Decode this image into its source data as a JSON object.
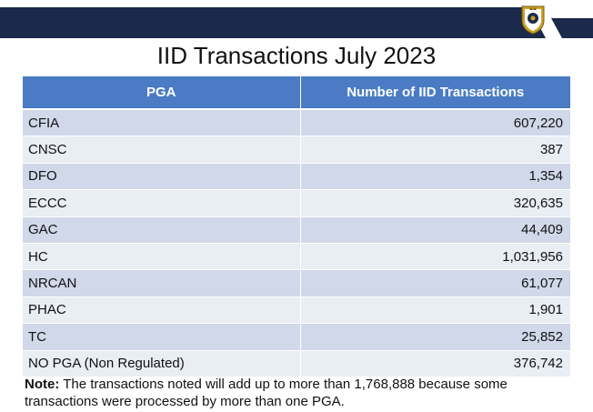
{
  "title": "IID Transactions July 2023",
  "table": {
    "headers": {
      "pga": "PGA",
      "count": "Number of IID Transactions"
    },
    "rows": [
      {
        "pga": "CFIA",
        "count": "607,220"
      },
      {
        "pga": "CNSC",
        "count": "387"
      },
      {
        "pga": "DFO",
        "count": "1,354"
      },
      {
        "pga": "ECCC",
        "count": "320,635"
      },
      {
        "pga": "GAC",
        "count": "44,409"
      },
      {
        "pga": "HC",
        "count": "1,031,956"
      },
      {
        "pga": "NRCAN",
        "count": "61,077"
      },
      {
        "pga": "PHAC",
        "count": "1,901"
      },
      {
        "pga": "TC",
        "count": "25,852"
      },
      {
        "pga": "NO PGA (Non Regulated)",
        "count": "376,742"
      }
    ]
  },
  "note": {
    "label": "Note:",
    "text": " The transactions noted will add up to more than 1,768,888 because some transactions were processed by more than one PGA."
  },
  "colors": {
    "banner": "#1b2a4a",
    "header": "#4a7bc4",
    "row_odd": "#d0d8e9",
    "row_even": "#e9edf4",
    "logo_gold": "#c9a227"
  },
  "icons": {
    "logo": "cbsa-crest-icon"
  }
}
